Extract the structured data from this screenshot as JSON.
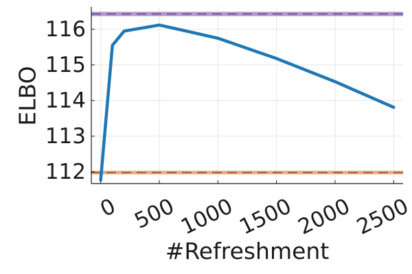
{
  "chart_data": {
    "type": "line",
    "title": "",
    "xlabel": "#Refreshment",
    "ylabel": "ELBO",
    "xlim": [
      -80,
      2580
    ],
    "ylim": [
      111.67,
      116.63
    ],
    "x_ticks": [
      0,
      500,
      1000,
      1500,
      2000,
      2500
    ],
    "x_tick_labels": [
      "0",
      "500",
      "1000",
      "1500",
      "2000",
      "2500"
    ],
    "y_ticks": [
      112,
      113,
      114,
      115,
      116
    ],
    "y_tick_labels": [
      "112",
      "113",
      "114",
      "115",
      "116"
    ],
    "grid": true,
    "legend": "none",
    "series": [
      {
        "color": "#1f77b4",
        "style": "solid",
        "x": [
          0,
          100,
          200,
          500,
          1000,
          1500,
          2000,
          2500
        ],
        "values": [
          111.77,
          115.55,
          115.95,
          116.12,
          115.75,
          115.18,
          114.53,
          113.81
        ]
      }
    ],
    "reference_lines": [
      {
        "value": 116.43,
        "band": [
          116.37,
          116.49
        ],
        "color": "#7b4fa0",
        "band_color": "#a787c7",
        "style": "dashed"
      },
      {
        "value": 111.98,
        "band": [
          111.93,
          112.03
        ],
        "color": "#b05a26",
        "band_color": "#dda27a",
        "style": "dashed"
      }
    ]
  }
}
